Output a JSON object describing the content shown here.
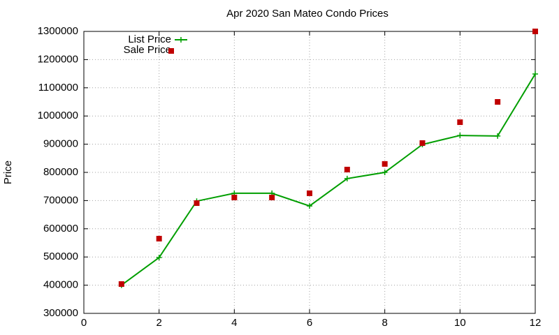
{
  "chart_data": {
    "type": "line",
    "title": "Apr 2020 San Mateo Condo Prices",
    "y_label": "Price",
    "x": [
      1,
      2,
      3,
      4,
      5,
      6,
      7,
      8,
      9,
      10,
      11,
      12
    ],
    "series": [
      {
        "name": "List Price",
        "color": "#009e00",
        "mode": "lines+points",
        "values": [
          400000,
          498000,
          698000,
          726000,
          726000,
          681000,
          778000,
          800000,
          899000,
          931000,
          929000,
          1149000
        ]
      },
      {
        "name": "Sale Price",
        "color": "#c00000",
        "mode": "points",
        "values": [
          404000,
          565000,
          691000,
          711000,
          711000,
          726000,
          810000,
          830000,
          904000,
          978000,
          1050000,
          1300000
        ]
      }
    ],
    "xlim": [
      0,
      12
    ],
    "xticks": [
      0,
      2,
      4,
      6,
      8,
      10,
      12
    ],
    "ylim": [
      300000,
      1300000
    ],
    "yticks": [
      300000,
      400000,
      500000,
      600000,
      700000,
      800000,
      900000,
      1000000,
      1100000,
      1200000,
      1300000
    ],
    "grid": true,
    "legend": "top-left"
  }
}
